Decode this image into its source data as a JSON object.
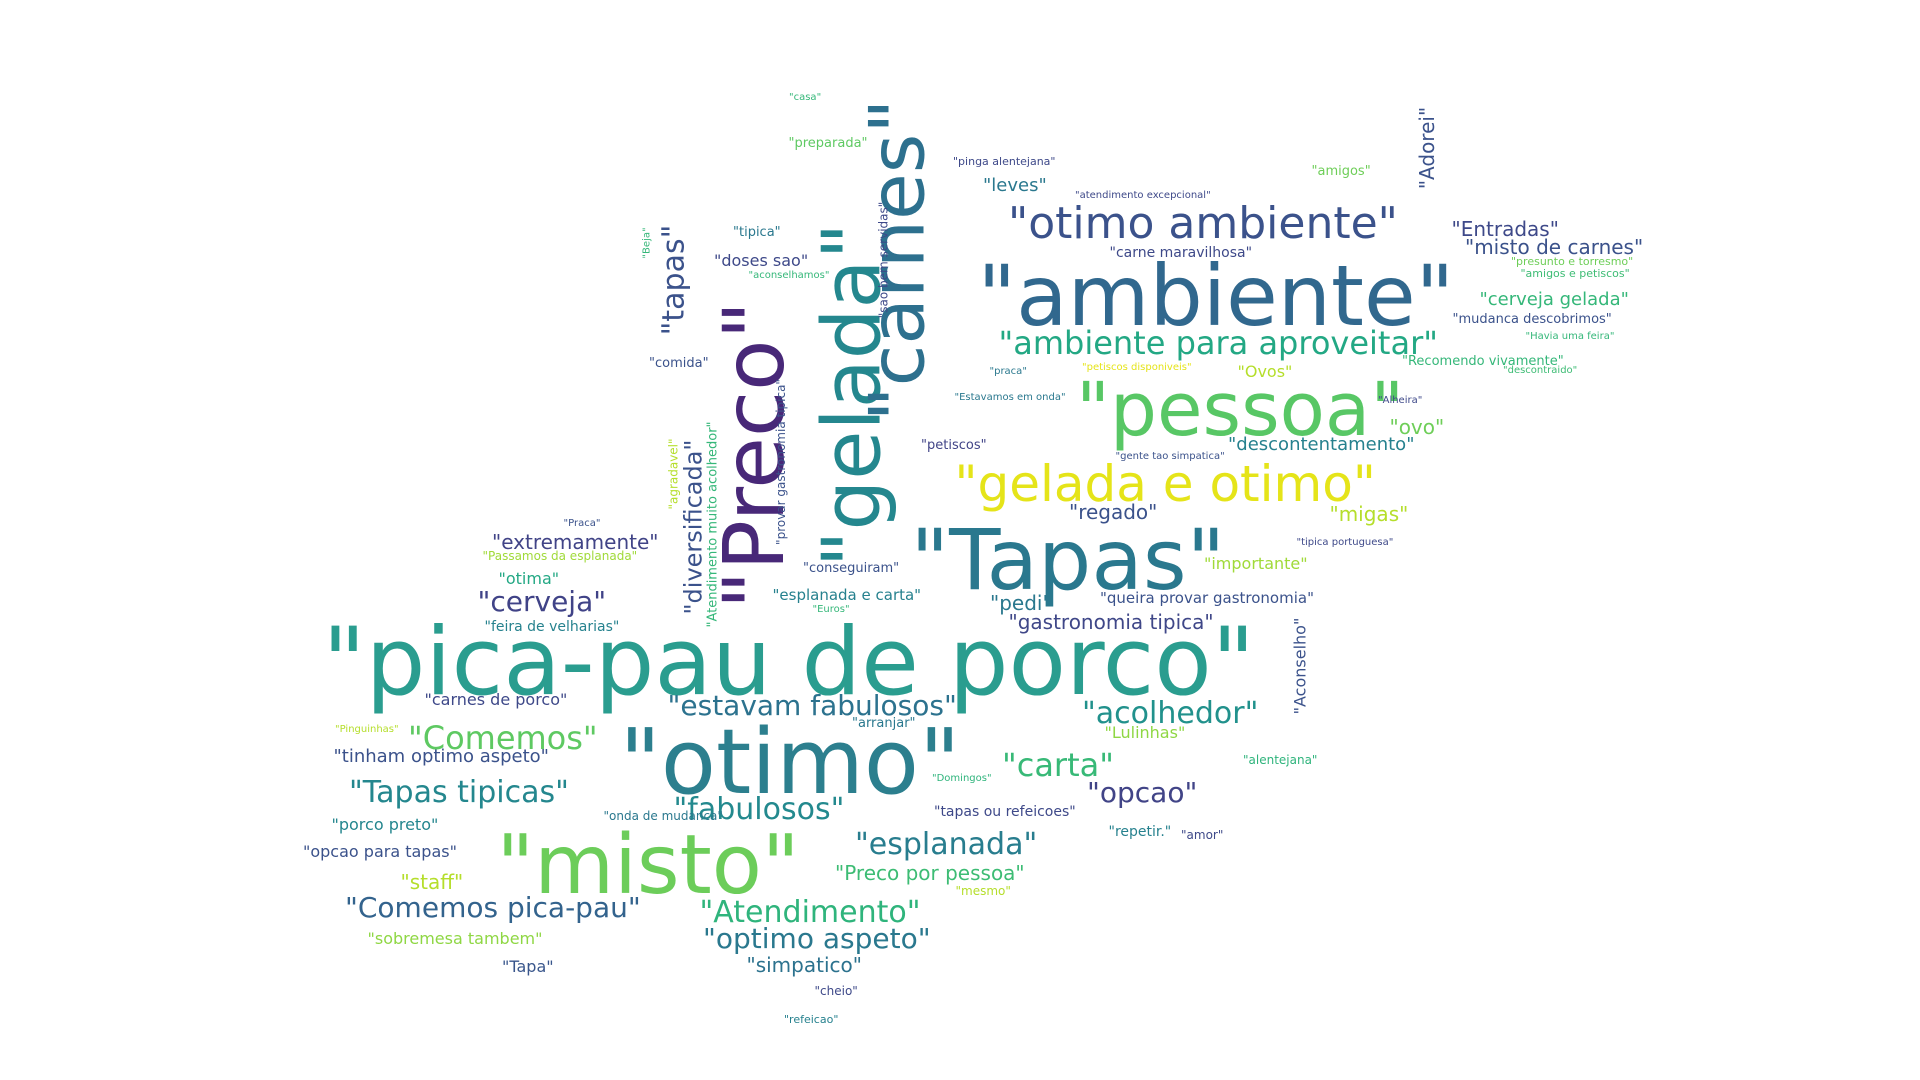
{
  "words": [
    {
      "text": "\"pica-pau de porco\"",
      "color": "#2a9d8f",
      "rotate": false
    },
    {
      "text": "\"otimo\"",
      "color": "#2c7f8e",
      "rotate": false
    },
    {
      "text": "\"misto\"",
      "color": "#6ccd5a",
      "rotate": false
    },
    {
      "text": "\"ambiente\"",
      "color": "#31688e",
      "rotate": false
    },
    {
      "text": "\"pessoa\"",
      "color": "#58c765",
      "rotate": false
    },
    {
      "text": "\"Tapas\"",
      "color": "#2a788e",
      "rotate": false
    },
    {
      "text": "\"Preco\"",
      "color": "#482878",
      "rotate": true
    },
    {
      "text": "\"gelada\"",
      "color": "#24878e",
      "rotate": true
    },
    {
      "text": "\"carnes\"",
      "color": "#2d708e",
      "rotate": true
    },
    {
      "text": "\"otimo ambiente\"",
      "color": "#3b528b",
      "rotate": false
    },
    {
      "text": "\"gelada e otimo\"",
      "color": "#e5e419",
      "rotate": false
    },
    {
      "text": "\"ambiente para aproveitar\"",
      "color": "#23a884",
      "rotate": false
    },
    {
      "text": "\"tapas\"",
      "color": "#3b528b",
      "rotate": true
    },
    {
      "text": "\"acolhedor\"",
      "color": "#21918c",
      "rotate": false
    },
    {
      "text": "\"estavam fabulosos\"",
      "color": "#2c728e",
      "rotate": false
    },
    {
      "text": "\"Comemos\"",
      "color": "#5ec962",
      "rotate": false
    },
    {
      "text": "\"carta\"",
      "color": "#38b977",
      "rotate": false
    },
    {
      "text": "\"opcao\"",
      "color": "#414487",
      "rotate": false
    },
    {
      "text": "\"Tapas tipicas\"",
      "color": "#24878e",
      "rotate": false
    },
    {
      "text": "\"fabulosos\"",
      "color": "#23898e",
      "rotate": false
    },
    {
      "text": "\"esplanada\"",
      "color": "#287d8e",
      "rotate": false
    },
    {
      "text": "\"Atendimento\"",
      "color": "#2fb47c",
      "rotate": false
    },
    {
      "text": "\"Comemos pica-pau\"",
      "color": "#33638d",
      "rotate": false
    },
    {
      "text": "\"optimo aspeto\"",
      "color": "#2a788e",
      "rotate": false
    },
    {
      "text": "\"cerveja\"",
      "color": "#404387",
      "rotate": false
    },
    {
      "text": "\"extremamente\"",
      "color": "#414487",
      "rotate": false
    },
    {
      "text": "\"diversificada\"",
      "color": "#3b528b",
      "rotate": true
    },
    {
      "text": "\"Entradas\"",
      "color": "#3e4989",
      "rotate": false
    },
    {
      "text": "\"misto de carnes\"",
      "color": "#3b528b",
      "rotate": false
    },
    {
      "text": "\"cerveja gelada\"",
      "color": "#35b779",
      "rotate": false
    },
    {
      "text": "\"Adorei\"",
      "color": "#3b528b",
      "rotate": true
    },
    {
      "text": "\"leves\"",
      "color": "#2a788e",
      "rotate": false
    },
    {
      "text": "\"descontentamento\"",
      "color": "#26818e",
      "rotate": false
    },
    {
      "text": "\"ovo\"",
      "color": "#6ece58",
      "rotate": false
    },
    {
      "text": "\"migas\"",
      "color": "#b5de2b",
      "rotate": false
    },
    {
      "text": "\"regado\"",
      "color": "#3b528b",
      "rotate": false
    },
    {
      "text": "\"gastronomia tipica\"",
      "color": "#3f4788",
      "rotate": false
    },
    {
      "text": "\"pedi\"",
      "color": "#2a788e",
      "rotate": false
    },
    {
      "text": "\"Aconselho\"",
      "color": "#3b528b",
      "rotate": true
    },
    {
      "text": "\"Preco por pessoa\"",
      "color": "#3dbc74",
      "rotate": false
    },
    {
      "text": "\"simpatico\"",
      "color": "#2c728e",
      "rotate": false
    },
    {
      "text": "\"staff\"",
      "color": "#b5de2b",
      "rotate": false
    },
    {
      "text": "\"sobremesa tambem\"",
      "color": "#8fd744",
      "rotate": false
    },
    {
      "text": "\"Tapa\"",
      "color": "#39568c",
      "rotate": false
    },
    {
      "text": "\"porco preto\"",
      "color": "#24868e",
      "rotate": false
    },
    {
      "text": "\"opcao para tapas\"",
      "color": "#3b528b",
      "rotate": false
    },
    {
      "text": "\"tinham optimo aspeto\"",
      "color": "#3b528b",
      "rotate": false
    },
    {
      "text": "\"carnes de porco\"",
      "color": "#3e4989",
      "rotate": false
    },
    {
      "text": "\"feira de velharias\"",
      "color": "#26828e",
      "rotate": false
    },
    {
      "text": "\"otima\"",
      "color": "#23a884",
      "rotate": false
    },
    {
      "text": "\"importante\"",
      "color": "#a0da39",
      "rotate": false
    },
    {
      "text": "\"Ovos\"",
      "color": "#b5de2b",
      "rotate": false
    },
    {
      "text": "\"doses sao\"",
      "color": "#3e4989",
      "rotate": false
    },
    {
      "text": "\"tipica\"",
      "color": "#2a788e",
      "rotate": false
    },
    {
      "text": "\"preparada\"",
      "color": "#5ec962",
      "rotate": false
    },
    {
      "text": "\"amigos\"",
      "color": "#6ece58",
      "rotate": false
    },
    {
      "text": "\"carne maravilhosa\"",
      "color": "#3e4989",
      "rotate": false
    },
    {
      "text": "\"queira provar gastronomia\"",
      "color": "#3b528b",
      "rotate": false
    },
    {
      "text": "\"esplanada e carta\"",
      "color": "#26818e",
      "rotate": false
    },
    {
      "text": "\"Lulinhas\"",
      "color": "#8fd744",
      "rotate": false
    },
    {
      "text": "\"repetir.\"",
      "color": "#26818e",
      "rotate": false
    },
    {
      "text": "\"tapas ou refeicoes\"",
      "color": "#3e4989",
      "rotate": false
    },
    {
      "text": "\"comida\"",
      "color": "#3b528b",
      "rotate": false
    },
    {
      "text": "\"petiscos\"",
      "color": "#414487",
      "rotate": false
    },
    {
      "text": "\"conseguiram\"",
      "color": "#3b528b",
      "rotate": false
    },
    {
      "text": "\"arranjar\"",
      "color": "#2a788e",
      "rotate": false
    },
    {
      "text": "\"alentejana\"",
      "color": "#2fb47c",
      "rotate": false
    },
    {
      "text": "\"onda de mudanca\"",
      "color": "#2a788e",
      "rotate": false
    },
    {
      "text": "\"mudanca descobrimos\"",
      "color": "#3b528b",
      "rotate": false
    },
    {
      "text": "\"amor\"",
      "color": "#3e4989",
      "rotate": false
    },
    {
      "text": "\"mesmo\"",
      "color": "#b5de2b",
      "rotate": false
    },
    {
      "text": "\"cheio\"",
      "color": "#3e4989",
      "rotate": false
    },
    {
      "text": "\"refeicao\"",
      "color": "#26818e",
      "rotate": false
    },
    {
      "text": "\"Recomendo vivamente\"",
      "color": "#35b779",
      "rotate": false
    },
    {
      "text": "\"presunto e torresmo\"",
      "color": "#6ece58",
      "rotate": false
    },
    {
      "text": "\"amigos e petiscos\"",
      "color": "#3dbc74",
      "rotate": false
    },
    {
      "text": "\"Havia uma feira\"",
      "color": "#35b779",
      "rotate": false
    },
    {
      "text": "\"descontraido\"",
      "color": "#3dbc74",
      "rotate": false
    },
    {
      "text": "\"Alheira\"",
      "color": "#3e4989",
      "rotate": false
    },
    {
      "text": "\"gente tao simpatica\"",
      "color": "#3b528b",
      "rotate": false
    },
    {
      "text": "\"Estavamos em onda\"",
      "color": "#2a788e",
      "rotate": false
    },
    {
      "text": "\"praca\"",
      "color": "#2a788e",
      "rotate": false
    },
    {
      "text": "\"petiscos disponiveis\"",
      "color": "#e5e419",
      "rotate": false
    },
    {
      "text": "\"tipica portuguesa\"",
      "color": "#3e4989",
      "rotate": false
    },
    {
      "text": "\"Euros\"",
      "color": "#35b779",
      "rotate": false
    },
    {
      "text": "\"Domingos\"",
      "color": "#2fb47c",
      "rotate": false
    },
    {
      "text": "\"Pinguinhas\"",
      "color": "#b5de2b",
      "rotate": false
    },
    {
      "text": "\"Passamos da esplanada\"",
      "color": "#a0da39",
      "rotate": false
    },
    {
      "text": "\"Praca\"",
      "color": "#3b528b",
      "rotate": false
    },
    {
      "text": "\"agradavel\"",
      "color": "#b5de2b",
      "rotate": true
    },
    {
      "text": "\"Atendimento muito acolhedor\"",
      "color": "#35b779",
      "rotate": true
    },
    {
      "text": "\"provar gastronomia tipica\"",
      "color": "#3b528b",
      "rotate": true
    },
    {
      "text": "\"sao bem servidas\"",
      "color": "#3e4989",
      "rotate": true
    },
    {
      "text": "\"Beja\"",
      "color": "#35b779",
      "rotate": true
    },
    {
      "text": "\"aconselhamos\"",
      "color": "#35b779",
      "rotate": false
    },
    {
      "text": "\"atendimento excepcional\"",
      "color": "#3e4989",
      "rotate": false
    },
    {
      "text": "\"pinga alentejana\"",
      "color": "#3e4989",
      "rotate": false
    },
    {
      "text": "\"casa\"",
      "color": "#35b779",
      "rotate": false
    }
  ]
}
